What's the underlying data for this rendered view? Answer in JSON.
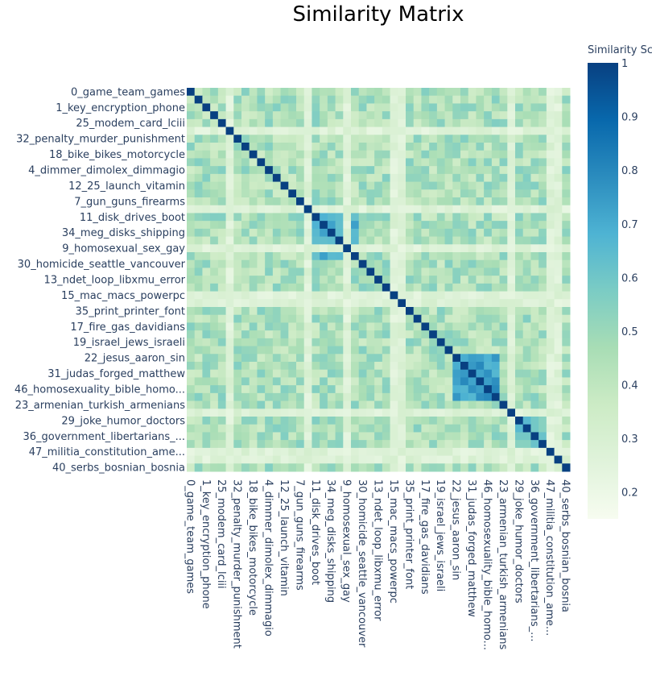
{
  "chart_data": {
    "type": "heatmap",
    "title": "Similarity Matrix",
    "colorbar_title": "Similarity Score",
    "colorbar_ticks": [
      "1",
      "0.9",
      "0.8",
      "0.7",
      "0.6",
      "0.5",
      "0.4",
      "0.3",
      "0.2"
    ],
    "colorbar_range": [
      0.15,
      1.0
    ],
    "colorscale": [
      "#f7fcf0",
      "#e0f3db",
      "#ccebc5",
      "#a8ddb5",
      "#7bccc4",
      "#4eb3d3",
      "#2b8cbe",
      "#0868ac",
      "#084081"
    ],
    "size": 49,
    "tick_step": 2,
    "labels": [
      "0_game_team_games",
      "1_key_encryption_phone",
      "25_modem_card_lciii",
      "32_penalty_murder_punishment",
      "18_bike_bikes_motorcycle",
      "4_dimmer_dimolex_dimmagio",
      "12_25_launch_vitamin",
      "7_gun_guns_firearms",
      "11_disk_drives_boot",
      "34_meg_disks_shipping",
      "9_homosexual_sex_gay",
      "30_homicide_seattle_vancouver",
      "13_ndet_loop_libxmu_error",
      "15_mac_macs_powerpc",
      "35_print_printer_font",
      "17_fire_gas_davidians",
      "19_israel_jews_israeli",
      "22_jesus_aaron_sin",
      "31_judas_forged_matthew",
      "46_homosexuality_bible_homo...",
      "23_armenian_turkish_armenians",
      "29_joke_humor_doctors",
      "36_government_libertarians_...",
      "47_militia_constitution_ame...",
      "40_serbs_bosnian_bosnia"
    ],
    "low_rows": [
      5,
      15,
      20,
      26,
      27,
      41,
      46,
      47
    ],
    "cluster_blocks": [
      [
        16,
        21,
        0.62
      ],
      [
        34,
        39,
        0.66
      ],
      [
        42,
        46,
        0.52
      ]
    ],
    "diagonal_value": 1.0
  }
}
